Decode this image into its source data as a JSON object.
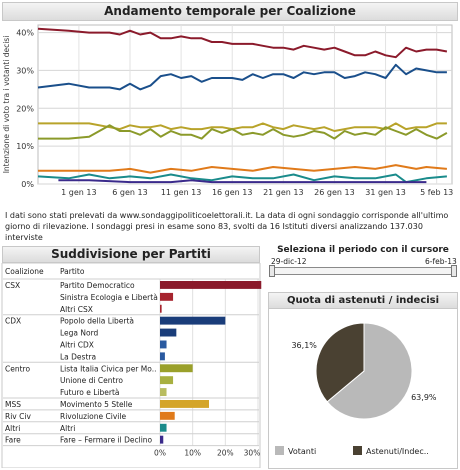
{
  "top_title": "Andamento temporale per Coalizione",
  "note": "I dati sono stati prelevati da www.sondaggipoliticoelettorali.it. La data di ogni sondaggio corrisponde all'ultimo giorno di rilevazione. I sondaggi presi in esame sono 83, svolti da 16 Istituti diversi analizzando 137.030 interviste",
  "parties_title": "Suddivisione per Partiti",
  "slider": {
    "title": "Seleziona il periodo con il cursore",
    "start": "29-dic-12",
    "end": "6-feb-13"
  },
  "pie_title": "Quota di astenuti / indecisi",
  "chart_data": [
    {
      "type": "line",
      "ylabel": "Intenzione di voto tra i votanti decisi",
      "ylim": [
        0,
        42
      ],
      "yticks": [
        0,
        10,
        20,
        30,
        40
      ],
      "ytick_labels": [
        "0%",
        "10%",
        "20%",
        "30%",
        "40%"
      ],
      "xlim": [
        0,
        39
      ],
      "xticks": [
        4,
        9,
        14,
        19,
        24,
        29,
        34,
        39
      ],
      "xtick_labels": [
        "1 gen 13",
        "6 gen 13",
        "11 gen 13",
        "16 gen 13",
        "21 gen 13",
        "26 gen 13",
        "31 gen 13",
        "5 feb 13"
      ],
      "grid": true,
      "series": [
        {
          "color": "#8b1a2b",
          "x": [
            0,
            3,
            5,
            7,
            8,
            9,
            10,
            11,
            12,
            13,
            14,
            15,
            16,
            17,
            18,
            19,
            20,
            21,
            22,
            23,
            24,
            25,
            26,
            27,
            28,
            29,
            30,
            31,
            32,
            33,
            34,
            35,
            36,
            37,
            38,
            39,
            40
          ],
          "values": [
            41,
            40.5,
            40,
            40,
            39.5,
            40.5,
            39.5,
            40,
            38.5,
            38.5,
            39,
            38.5,
            38.5,
            37.5,
            37.5,
            37,
            37,
            37,
            36.5,
            36,
            36,
            35.5,
            36.5,
            36,
            35.5,
            36,
            35,
            34,
            34,
            35,
            34,
            33.5,
            36,
            35,
            35.5,
            35.5,
            35
          ]
        },
        {
          "color": "#1a4f8b",
          "x": [
            0,
            3,
            5,
            7,
            8,
            9,
            10,
            11,
            12,
            13,
            14,
            15,
            16,
            17,
            18,
            19,
            20,
            21,
            22,
            23,
            24,
            25,
            26,
            27,
            28,
            29,
            30,
            31,
            32,
            33,
            34,
            35,
            36,
            37,
            38,
            39,
            40
          ],
          "values": [
            25.5,
            26.5,
            25.5,
            25.5,
            25,
            26.5,
            25,
            26,
            28.5,
            29,
            28,
            28.5,
            27,
            28,
            28,
            28,
            27.5,
            29,
            28,
            29,
            29,
            28,
            29.5,
            29,
            29.5,
            29.5,
            28,
            28.5,
            29.5,
            29,
            28,
            31.5,
            29,
            30.5,
            30,
            29.5,
            29.5
          ]
        },
        {
          "color": "#b8a32a",
          "x": [
            0,
            3,
            5,
            7,
            8,
            9,
            10,
            11,
            12,
            13,
            14,
            15,
            16,
            17,
            18,
            19,
            20,
            21,
            22,
            23,
            24,
            25,
            26,
            27,
            28,
            29,
            30,
            31,
            32,
            33,
            34,
            35,
            36,
            37,
            38,
            39,
            40
          ],
          "values": [
            16,
            16,
            16,
            15,
            14.5,
            15.5,
            15,
            15,
            15.5,
            14.5,
            15,
            14.5,
            14.5,
            15,
            15,
            14.5,
            15,
            15,
            16,
            15,
            14.5,
            15.5,
            15,
            14.5,
            15,
            14,
            14.5,
            15,
            15,
            15,
            14.5,
            16,
            14.5,
            15,
            15,
            16,
            16
          ]
        },
        {
          "color": "#8b9a2a",
          "x": [
            0,
            3,
            5,
            7,
            8,
            9,
            10,
            11,
            12,
            13,
            14,
            15,
            16,
            17,
            18,
            19,
            20,
            21,
            22,
            23,
            24,
            25,
            26,
            27,
            28,
            29,
            30,
            31,
            32,
            33,
            34,
            35,
            36,
            37,
            38,
            39,
            40
          ],
          "values": [
            12,
            12,
            12.5,
            15.5,
            14,
            14,
            13,
            14.5,
            12.5,
            14,
            13,
            13,
            12,
            14.5,
            13.5,
            14.5,
            13,
            13.5,
            13,
            14.5,
            13,
            12.5,
            13,
            14,
            13.5,
            12,
            14,
            13,
            13.5,
            13,
            15,
            14,
            13,
            14.5,
            13,
            12,
            13.5
          ]
        },
        {
          "color": "#e07a1a",
          "x": [
            0,
            3,
            5,
            7,
            9,
            11,
            13,
            15,
            17,
            19,
            21,
            23,
            25,
            27,
            29,
            31,
            33,
            35,
            37,
            38,
            40
          ],
          "values": [
            3.5,
            3.5,
            3.5,
            3.5,
            4,
            3,
            4,
            3.5,
            4.5,
            4,
            3.5,
            4.5,
            4,
            3.5,
            4,
            4.5,
            4,
            5,
            4,
            4.5,
            4
          ]
        },
        {
          "color": "#1a8b8b",
          "x": [
            0,
            3,
            5,
            7,
            9,
            11,
            13,
            15,
            17,
            19,
            21,
            23,
            25,
            27,
            29,
            31,
            33,
            35,
            36,
            38,
            40
          ],
          "values": [
            2,
            1.5,
            2.5,
            1.5,
            2,
            1.5,
            2.5,
            1.5,
            1,
            2,
            1.5,
            1.5,
            2.5,
            1,
            2,
            1.5,
            1.5,
            2.5,
            0.5,
            1.5,
            2
          ]
        },
        {
          "color": "#3a2a8b",
          "x": [
            2,
            5,
            9,
            13,
            15,
            17,
            21,
            25,
            29,
            33,
            35,
            38
          ],
          "values": [
            1,
            1,
            0.5,
            0.5,
            1,
            0.5,
            0.5,
            0.5,
            0.5,
            0.5,
            0.5,
            0.5
          ]
        }
      ]
    },
    {
      "type": "bar",
      "headers": [
        "Coalizione",
        "Partito"
      ],
      "xlim": [
        0,
        30
      ],
      "xticks": [
        0,
        10,
        20,
        30
      ],
      "xtick_labels": [
        "0%",
        "10%",
        "20%",
        "30%"
      ],
      "groups": [
        {
          "name": "CSX",
          "items": [
            {
              "label": "Partito Democratico",
              "value": 31,
              "color": "#8b1a2b"
            },
            {
              "label": "Sinistra Ecologia e Libertà",
              "value": 4,
              "color": "#a6242e"
            },
            {
              "label": "Altri CSX",
              "value": 0.5,
              "color": "#a6242e"
            }
          ]
        },
        {
          "name": "CDX",
          "items": [
            {
              "label": "Popolo della Libertà",
              "value": 20,
              "color": "#1a3d7a"
            },
            {
              "label": "Lega Nord",
              "value": 5,
              "color": "#1a3d7a"
            },
            {
              "label": "Altri CDX",
              "value": 2,
              "color": "#2a5aa0"
            },
            {
              "label": "La Destra",
              "value": 1.5,
              "color": "#2a5aa0"
            }
          ]
        },
        {
          "name": "Centro",
          "items": [
            {
              "label": "Lista Italia Civica per Mo..",
              "value": 10,
              "color": "#9aa02a"
            },
            {
              "label": "Unione di Centro",
              "value": 4,
              "color": "#a8b040"
            },
            {
              "label": "Futuro e Libertà",
              "value": 2,
              "color": "#b8bc60"
            }
          ]
        },
        {
          "name": "MSS",
          "items": [
            {
              "label": "Movimento 5 Stelle",
              "value": 15,
              "color": "#d4a52a"
            }
          ]
        },
        {
          "name": "Riv Civ",
          "items": [
            {
              "label": "Rivoluzione Civile",
              "value": 4.5,
              "color": "#e07a1a"
            }
          ]
        },
        {
          "name": "Altri",
          "items": [
            {
              "label": "Altri",
              "value": 2,
              "color": "#1a8b8b"
            }
          ]
        },
        {
          "name": "Fare",
          "items": [
            {
              "label": "Fare – Fermare il Declino",
              "value": 1,
              "color": "#3a2a8b"
            }
          ]
        }
      ]
    },
    {
      "type": "pie",
      "slices": [
        {
          "label": "Votanti",
          "value": 63.9,
          "value_label": "63,9%",
          "color": "#b9b9b9"
        },
        {
          "label": "Astenuti/Indec..",
          "value": 36.1,
          "value_label": "36,1%",
          "color": "#4a4132"
        }
      ]
    }
  ]
}
